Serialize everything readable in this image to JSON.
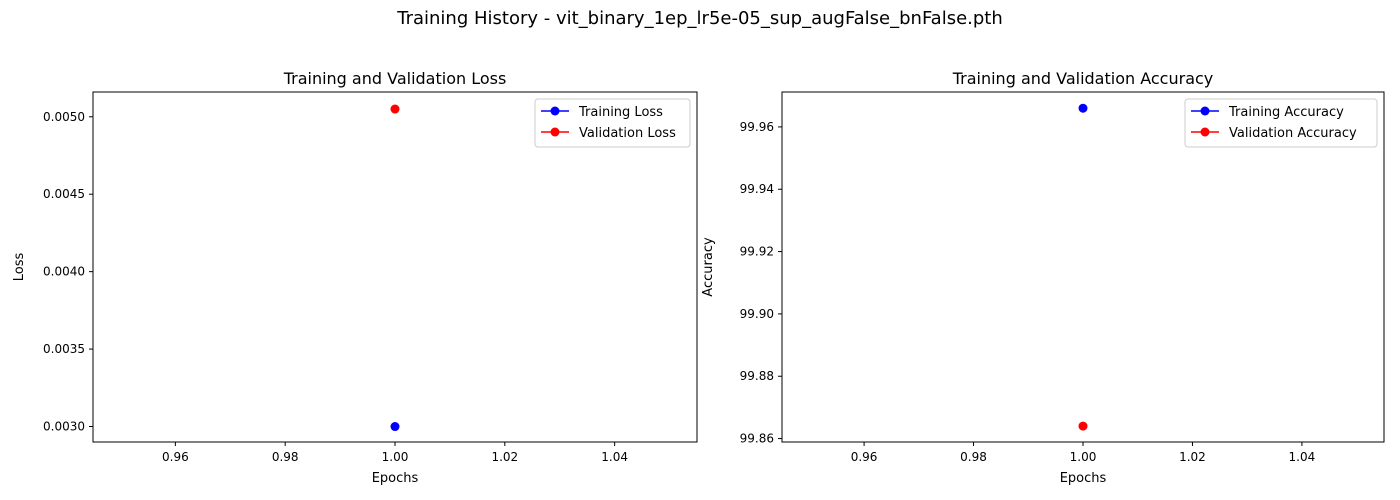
{
  "figure": {
    "suptitle": "Training History - vit_binary_1ep_lr5e-05_sup_augFalse_bnFalse.pth"
  },
  "chart_data": [
    {
      "type": "line",
      "title": "Training and Validation Loss",
      "xlabel": "Epochs",
      "ylabel": "Loss",
      "xlim": [
        0.945,
        1.055
      ],
      "ylim": [
        0.0029,
        0.00516
      ],
      "xticks": [
        0.96,
        0.98,
        1.0,
        1.02,
        1.04
      ],
      "xtick_labels": [
        "0.96",
        "0.98",
        "1.00",
        "1.02",
        "1.04"
      ],
      "yticks": [
        0.003,
        0.0035,
        0.004,
        0.0045,
        0.005
      ],
      "ytick_labels": [
        "0.0030",
        "0.0035",
        "0.0040",
        "0.0045",
        "0.0050"
      ],
      "grid": false,
      "legend_position": "top-right",
      "series": [
        {
          "name": "Training Loss",
          "color": "#0000ff",
          "marker": "circle",
          "x": [
            1.0
          ],
          "y": [
            0.003
          ]
        },
        {
          "name": "Validation Loss",
          "color": "#ff0000",
          "marker": "circle",
          "x": [
            1.0
          ],
          "y": [
            0.00505
          ]
        }
      ]
    },
    {
      "type": "line",
      "title": "Training and Validation Accuracy",
      "xlabel": "Epochs",
      "ylabel": "Accuracy",
      "xlim": [
        0.945,
        1.055
      ],
      "ylim": [
        99.8589,
        99.9712
      ],
      "xticks": [
        0.96,
        0.98,
        1.0,
        1.02,
        1.04
      ],
      "xtick_labels": [
        "0.96",
        "0.98",
        "1.00",
        "1.02",
        "1.04"
      ],
      "yticks": [
        99.86,
        99.88,
        99.9,
        99.92,
        99.94,
        99.96
      ],
      "ytick_labels": [
        "99.86",
        "99.88",
        "99.90",
        "99.92",
        "99.94",
        "99.96"
      ],
      "grid": false,
      "legend_position": "top-right",
      "series": [
        {
          "name": "Training Accuracy",
          "color": "#0000ff",
          "marker": "circle",
          "x": [
            1.0
          ],
          "y": [
            99.966
          ]
        },
        {
          "name": "Validation Accuracy",
          "color": "#ff0000",
          "marker": "circle",
          "x": [
            1.0
          ],
          "y": [
            99.864
          ]
        }
      ]
    }
  ]
}
